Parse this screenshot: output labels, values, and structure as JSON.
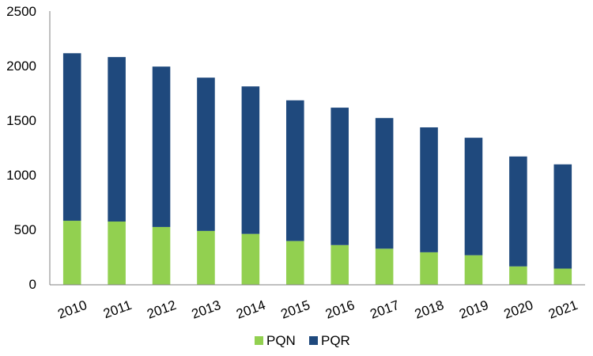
{
  "chart_data": {
    "type": "bar",
    "stacked": true,
    "categories": [
      "2010",
      "2011",
      "2012",
      "2013",
      "2014",
      "2015",
      "2016",
      "2017",
      "2018",
      "2019",
      "2020",
      "2021"
    ],
    "series": [
      {
        "name": "PQN",
        "color": "#92d050",
        "values": [
          585,
          578,
          528,
          492,
          465,
          400,
          363,
          330,
          297,
          270,
          168,
          148
        ]
      },
      {
        "name": "PQR",
        "color": "#1f497d",
        "values": [
          1530,
          1502,
          1465,
          1400,
          1347,
          1285,
          1255,
          1193,
          1141,
          1073,
          1004,
          952
        ]
      }
    ],
    "ylim": [
      0,
      2500
    ],
    "yticks": [
      "0",
      "500",
      "1000",
      "1500",
      "2000",
      "2500"
    ],
    "grid": false,
    "legend": "bottom",
    "title": "",
    "xlabel": "",
    "ylabel": ""
  }
}
